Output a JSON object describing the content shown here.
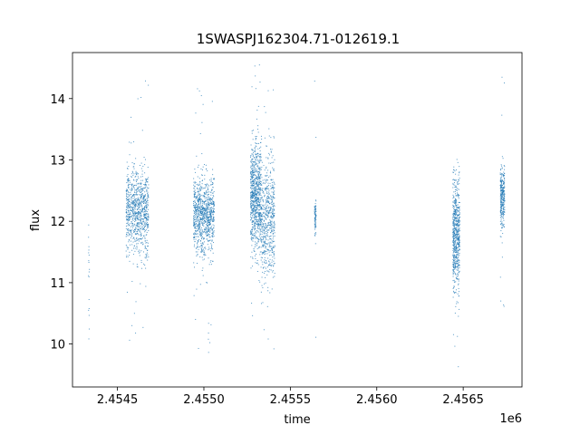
{
  "chart_data": {
    "type": "scatter",
    "title": "1SWASPJ162304.71-012619.1",
    "xlabel": "time",
    "ylabel": "flux",
    "x_offset_label": "1e6",
    "xlim": [
      2454240,
      2456840
    ],
    "ylim": [
      9.3,
      14.75
    ],
    "x_ticks": [
      2.4545,
      2.455,
      2.4555,
      2.456,
      2.4565
    ],
    "x_tick_labels": [
      "2.4545",
      "2.4550",
      "2.4555",
      "2.4560",
      "2.4565"
    ],
    "y_ticks": [
      10,
      11,
      12,
      13,
      14
    ],
    "y_tick_labels": [
      "10",
      "11",
      "12",
      "13",
      "14"
    ],
    "grid": false,
    "marker_color": "#1f77b4",
    "clusters": [
      {
        "x_start": 2454332,
        "x_end": 2454338,
        "y_center": 11.2,
        "y_spread": 0.6,
        "points": 18
      },
      {
        "x_start": 2454550,
        "x_end": 2454680,
        "y_center": 12.15,
        "y_spread": 0.35,
        "points": 900
      },
      {
        "x_start": 2454940,
        "x_end": 2455060,
        "y_center": 12.1,
        "y_spread": 0.3,
        "points": 950
      },
      {
        "x_start": 2455270,
        "x_end": 2455330,
        "y_center": 12.4,
        "y_spread": 0.45,
        "points": 800
      },
      {
        "x_start": 2455330,
        "x_end": 2455410,
        "y_center": 12.0,
        "y_spread": 0.5,
        "points": 600
      },
      {
        "x_start": 2455640,
        "x_end": 2455650,
        "y_center": 12.05,
        "y_spread": 0.15,
        "points": 80
      },
      {
        "x_start": 2456440,
        "x_end": 2456480,
        "y_center": 11.8,
        "y_spread": 0.45,
        "points": 650
      },
      {
        "x_start": 2456715,
        "x_end": 2456740,
        "y_center": 12.4,
        "y_spread": 0.25,
        "points": 300
      }
    ]
  }
}
